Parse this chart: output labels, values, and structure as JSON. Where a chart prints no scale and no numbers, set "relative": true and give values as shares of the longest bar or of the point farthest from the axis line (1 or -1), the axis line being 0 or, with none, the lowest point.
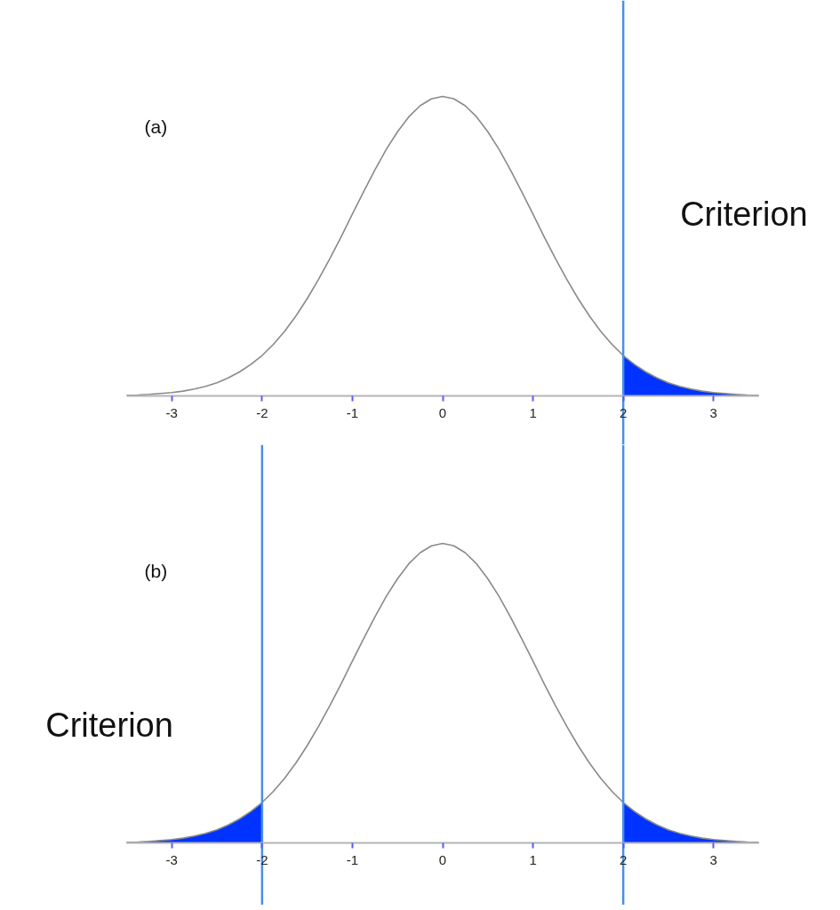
{
  "chart_data": [
    {
      "type": "line",
      "title": "(a)",
      "relative": true,
      "xlim": [
        -3.5,
        3.5
      ],
      "xticks": [
        -3,
        -2,
        -1,
        0,
        1,
        2,
        3
      ],
      "x": [
        -3.5,
        -3.375,
        -3.25,
        -3.125,
        -3,
        -2.875,
        -2.75,
        -2.625,
        -2.5,
        -2.375,
        -2.25,
        -2.125,
        -2,
        -1.875,
        -1.75,
        -1.625,
        -1.5,
        -1.375,
        -1.25,
        -1.125,
        -1,
        -0.875,
        -0.75,
        -0.625,
        -0.5,
        -0.375,
        -0.25,
        -0.125,
        0,
        0.125,
        0.25,
        0.375,
        0.5,
        0.625,
        0.75,
        0.875,
        1,
        1.125,
        1.25,
        1.375,
        1.5,
        1.625,
        1.75,
        1.875,
        2,
        2.125,
        2.25,
        2.375,
        2.5,
        2.625,
        2.75,
        2.875,
        3,
        3.125,
        3.25,
        3.375,
        3.5
      ],
      "series": [
        {
          "type": "area",
          "color": "#0033ff",
          "x": [
            2,
            2.125,
            2.25,
            2.375,
            2.5,
            2.625,
            2.75,
            2.875,
            3,
            3.125,
            3.25,
            3.375,
            3.5
          ],
          "values": [
            0.135,
            0.105,
            0.08,
            0.06,
            0.044,
            0.032,
            0.023,
            0.016,
            0.011,
            0.008,
            0.005,
            0.003,
            0.002
          ]
        },
        {
          "color": "#8a8a8a",
          "values": [
            0.002,
            0.003,
            0.005,
            0.008,
            0.011,
            0.016,
            0.023,
            0.032,
            0.044,
            0.06,
            0.08,
            0.105,
            0.135,
            0.172,
            0.216,
            0.267,
            0.325,
            0.389,
            0.458,
            0.531,
            0.607,
            0.682,
            0.755,
            0.823,
            0.882,
            0.932,
            0.969,
            0.992,
            1,
            0.992,
            0.969,
            0.932,
            0.882,
            0.823,
            0.755,
            0.682,
            0.607,
            0.531,
            0.458,
            0.389,
            0.325,
            0.267,
            0.216,
            0.172,
            0.135,
            0.105,
            0.08,
            0.06,
            0.044,
            0.032,
            0.023,
            0.016,
            0.011,
            0.008,
            0.005,
            0.003,
            0.002
          ]
        }
      ],
      "ref_lines": [
        {
          "axis": "x",
          "value": 2,
          "label": "Criterion",
          "color": "#4a90e2"
        }
      ]
    },
    {
      "type": "line",
      "title": "(b)",
      "relative": true,
      "xlim": [
        -3.5,
        3.5
      ],
      "xticks": [
        -3,
        -2,
        -1,
        0,
        1,
        2,
        3
      ],
      "x": [
        -3.5,
        -3.375,
        -3.25,
        -3.125,
        -3,
        -2.875,
        -2.75,
        -2.625,
        -2.5,
        -2.375,
        -2.25,
        -2.125,
        -2,
        -1.875,
        -1.75,
        -1.625,
        -1.5,
        -1.375,
        -1.25,
        -1.125,
        -1,
        -0.875,
        -0.75,
        -0.625,
        -0.5,
        -0.375,
        -0.25,
        -0.125,
        0,
        0.125,
        0.25,
        0.375,
        0.5,
        0.625,
        0.75,
        0.875,
        1,
        1.125,
        1.25,
        1.375,
        1.5,
        1.625,
        1.75,
        1.875,
        2,
        2.125,
        2.25,
        2.375,
        2.5,
        2.625,
        2.75,
        2.875,
        3,
        3.125,
        3.25,
        3.375,
        3.5
      ],
      "series": [
        {
          "type": "area",
          "color": "#0033ff",
          "x": [
            -3.5,
            -3.375,
            -3.25,
            -3.125,
            -3,
            -2.875,
            -2.75,
            -2.625,
            -2.5,
            -2.375,
            -2.25,
            -2.125,
            -2
          ],
          "values": [
            0.002,
            0.003,
            0.005,
            0.008,
            0.011,
            0.016,
            0.023,
            0.032,
            0.044,
            0.06,
            0.08,
            0.105,
            0.135
          ]
        },
        {
          "type": "area",
          "color": "#0033ff",
          "x": [
            2,
            2.125,
            2.25,
            2.375,
            2.5,
            2.625,
            2.75,
            2.875,
            3,
            3.125,
            3.25,
            3.375,
            3.5
          ],
          "values": [
            0.135,
            0.105,
            0.08,
            0.06,
            0.044,
            0.032,
            0.023,
            0.016,
            0.011,
            0.008,
            0.005,
            0.003,
            0.002
          ]
        },
        {
          "color": "#8a8a8a",
          "values": [
            0.002,
            0.003,
            0.005,
            0.008,
            0.011,
            0.016,
            0.023,
            0.032,
            0.044,
            0.06,
            0.08,
            0.105,
            0.135,
            0.172,
            0.216,
            0.267,
            0.325,
            0.389,
            0.458,
            0.531,
            0.607,
            0.682,
            0.755,
            0.823,
            0.882,
            0.932,
            0.969,
            0.992,
            1,
            0.992,
            0.969,
            0.932,
            0.882,
            0.823,
            0.755,
            0.682,
            0.607,
            0.531,
            0.458,
            0.389,
            0.325,
            0.267,
            0.216,
            0.172,
            0.135,
            0.105,
            0.08,
            0.06,
            0.044,
            0.032,
            0.023,
            0.016,
            0.011,
            0.008,
            0.005,
            0.003,
            0.002
          ]
        }
      ],
      "ref_lines": [
        {
          "axis": "x",
          "value": -2,
          "label": "Criterion",
          "color": "#4a90e2"
        },
        {
          "axis": "x",
          "value": 2,
          "color": "#4a90e2"
        }
      ]
    }
  ]
}
